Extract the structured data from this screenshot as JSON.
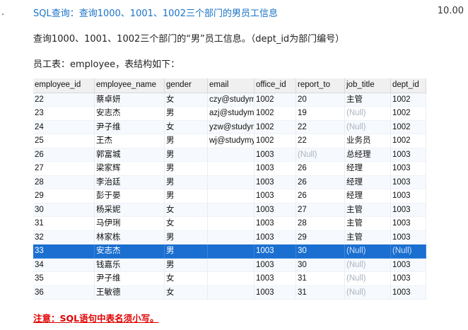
{
  "question": {
    "number": ".",
    "title": "SQL查询：查询1000、1001、1002三个部门的男员工信息",
    "score": "10.00",
    "description": "查询1000、1001、1002三个部门的“男”员工信息。（dept_id为部门编号）",
    "table_label": "员工表：employee，表结构如下："
  },
  "table": {
    "columns": [
      "employee_id",
      "employee_name",
      "gender",
      "email",
      "office_id",
      "report_to",
      "job_title",
      "dept_id"
    ],
    "selected_row": 11,
    "rows": [
      [
        "22",
        "蔡卓妍",
        "女",
        "czy@studym",
        "1002",
        "20",
        "主管",
        "1002"
      ],
      [
        "23",
        "安志杰",
        "男",
        "azj@studym",
        "1002",
        "19",
        "(Null)",
        "1002"
      ],
      [
        "24",
        "尹子维",
        "女",
        "yzw@studym",
        "1002",
        "22",
        "(Null)",
        "1002"
      ],
      [
        "25",
        "王杰",
        "男",
        "wj@studymy",
        "1002",
        "22",
        "业务员",
        "1002"
      ],
      [
        "26",
        "郭富城",
        "男",
        "",
        "1003",
        "(Null)",
        "总经理",
        "1003"
      ],
      [
        "27",
        "梁家辉",
        "男",
        "",
        "1003",
        "26",
        "经理",
        "1003"
      ],
      [
        "28",
        "李治廷",
        "男",
        "",
        "1003",
        "26",
        "经理",
        "1003"
      ],
      [
        "29",
        "彭于晏",
        "男",
        "",
        "1003",
        "26",
        "经理",
        "1003"
      ],
      [
        "30",
        "杨采妮",
        "女",
        "",
        "1003",
        "27",
        "主管",
        "1003"
      ],
      [
        "31",
        "马伊琍",
        "女",
        "",
        "1003",
        "28",
        "主管",
        "1003"
      ],
      [
        "32",
        "林家栋",
        "男",
        "",
        "1003",
        "29",
        "主管",
        "1003"
      ],
      [
        "33",
        "安志杰",
        "男",
        "",
        "1003",
        "30",
        "(Null)",
        "(Null)"
      ],
      [
        "34",
        "钱嘉乐",
        "男",
        "",
        "1003",
        "30",
        "(Null)",
        "1003"
      ],
      [
        "35",
        "尹子维",
        "女",
        "",
        "1003",
        "31",
        "(Null)",
        "1003"
      ],
      [
        "36",
        "王敏德",
        "女",
        "",
        "1003",
        "31",
        "(Null)",
        "1003"
      ]
    ]
  },
  "note": "注意：SQL语句中表名须小写。",
  "colors": {
    "title": "#1a73c8",
    "selected_row": "#1a6fd0",
    "note": "#e00000",
    "null_text": "#aab4c0"
  }
}
